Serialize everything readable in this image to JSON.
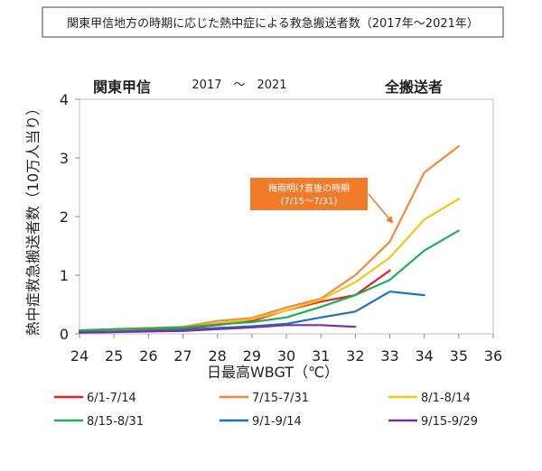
{
  "chart_data": {
    "type": "line",
    "title": "関東甲信地方の時期に応じた熱中症による救急搬送者数（2017年～2021年）",
    "subtitle_left": "関東甲信",
    "subtitle_years": "2017　～　2021",
    "subtitle_right": "全搬送者",
    "xlabel": "日最高WBGT（℃）",
    "ylabel": "熱中症救急搬送者数（10万人当り）",
    "xlim": [
      24,
      36
    ],
    "ylim": [
      0,
      4
    ],
    "x_ticks": [
      "24",
      "25",
      "26",
      "27",
      "28",
      "29",
      "30",
      "31",
      "32",
      "33",
      "34",
      "35",
      "36"
    ],
    "y_ticks": [
      "0",
      "1",
      "2",
      "3",
      "4"
    ],
    "annotation": {
      "line1": "梅雨明け直後の時期",
      "line2": "(7/15～7/31)",
      "box_color": "#f07b2a",
      "text_color": "#ffffff",
      "arrow_to": [
        33.1,
        1.88
      ]
    },
    "series": [
      {
        "name": "6/1-7/14",
        "color": "#e8202a",
        "x": [
          24,
          25,
          26,
          27,
          28,
          29,
          30,
          31,
          32,
          33
        ],
        "values": [
          0.04,
          0.05,
          0.06,
          0.09,
          0.15,
          0.22,
          0.4,
          0.55,
          0.66,
          1.08
        ]
      },
      {
        "name": "7/15-7/31",
        "color": "#ef8a3e",
        "x": [
          24,
          25,
          26,
          27,
          28,
          29,
          30,
          31,
          32,
          33,
          34,
          35
        ],
        "values": [
          0.06,
          0.08,
          0.1,
          0.12,
          0.22,
          0.27,
          0.45,
          0.6,
          1.0,
          1.57,
          2.75,
          3.2
        ]
      },
      {
        "name": "8/1-8/14",
        "color": "#f5c518",
        "x": [
          24,
          25,
          26,
          27,
          28,
          29,
          30,
          31,
          32,
          33,
          34,
          35
        ],
        "values": [
          0.05,
          0.07,
          0.09,
          0.11,
          0.18,
          0.25,
          0.4,
          0.58,
          0.88,
          1.3,
          1.95,
          2.3
        ]
      },
      {
        "name": "8/15-8/31",
        "color": "#1fae55",
        "x": [
          24,
          25,
          26,
          27,
          28,
          29,
          30,
          31,
          32,
          33,
          34,
          35
        ],
        "values": [
          0.06,
          0.08,
          0.09,
          0.11,
          0.16,
          0.2,
          0.28,
          0.46,
          0.66,
          0.92,
          1.42,
          1.76
        ]
      },
      {
        "name": "9/1-9/14",
        "color": "#2070c0",
        "x": [
          24,
          25,
          26,
          27,
          28,
          29,
          30,
          31,
          32,
          33,
          34
        ],
        "values": [
          0.03,
          0.04,
          0.05,
          0.07,
          0.1,
          0.13,
          0.17,
          0.28,
          0.38,
          0.72,
          0.66
        ]
      },
      {
        "name": "9/15-9/29",
        "color": "#7a2fa0",
        "x": [
          24,
          25,
          26,
          27,
          28,
          29,
          30,
          31,
          32
        ],
        "values": [
          0.02,
          0.03,
          0.04,
          0.05,
          0.08,
          0.11,
          0.15,
          0.15,
          0.12
        ]
      }
    ]
  }
}
